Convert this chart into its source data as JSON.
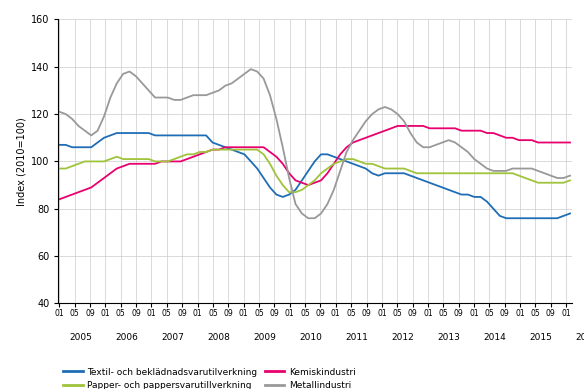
{
  "title": "",
  "ylabel": "Index (2010=100)",
  "ylim": [
    40,
    160
  ],
  "yticks": [
    40,
    60,
    80,
    100,
    120,
    140,
    160
  ],
  "background_color": "#ffffff",
  "grid_color": "#cccccc",
  "line_width": 1.3,
  "series": {
    "textil": {
      "label": "Textil- och beklädnadsvarutilverkning",
      "color": "#1f6eb5",
      "values": [
        107,
        107,
        106,
        106,
        106,
        106,
        108,
        110,
        111,
        112,
        112,
        112,
        112,
        112,
        112,
        111,
        111,
        111,
        111,
        111,
        111,
        111,
        111,
        111,
        108,
        107,
        106,
        105,
        104,
        103,
        100,
        97,
        93,
        89,
        86,
        85,
        86,
        88,
        92,
        96,
        100,
        103,
        103,
        102,
        101,
        100,
        99,
        98,
        97,
        95,
        94,
        95,
        95,
        95,
        95,
        94,
        93,
        92,
        91,
        90,
        89,
        88,
        87,
        86,
        86,
        85,
        85,
        83,
        80,
        77,
        76,
        76,
        76,
        76,
        76,
        76,
        76,
        76,
        76,
        77,
        78
      ]
    },
    "papper": {
      "label": "Papper- och pappersvarutillverkning",
      "color": "#9fc43b",
      "values": [
        97,
        97,
        98,
        99,
        100,
        100,
        100,
        100,
        101,
        102,
        101,
        101,
        101,
        101,
        101,
        100,
        100,
        100,
        101,
        102,
        103,
        103,
        104,
        104,
        105,
        105,
        105,
        105,
        105,
        105,
        105,
        105,
        103,
        99,
        94,
        90,
        87,
        87,
        88,
        90,
        92,
        95,
        97,
        99,
        100,
        101,
        101,
        100,
        99,
        99,
        98,
        97,
        97,
        97,
        97,
        96,
        95,
        95,
        95,
        95,
        95,
        95,
        95,
        95,
        95,
        95,
        95,
        95,
        95,
        95,
        95,
        95,
        94,
        93,
        92,
        91,
        91,
        91,
        91,
        91,
        92
      ]
    },
    "kemisk": {
      "label": "Kemiskindustri",
      "color": "#e8006e",
      "values": [
        84,
        85,
        86,
        87,
        88,
        89,
        91,
        93,
        95,
        97,
        98,
        99,
        99,
        99,
        99,
        99,
        100,
        100,
        100,
        100,
        101,
        102,
        103,
        104,
        105,
        105,
        106,
        106,
        106,
        106,
        106,
        106,
        106,
        104,
        102,
        99,
        95,
        92,
        91,
        90,
        91,
        92,
        95,
        99,
        103,
        106,
        108,
        109,
        110,
        111,
        112,
        113,
        114,
        115,
        115,
        115,
        115,
        115,
        114,
        114,
        114,
        114,
        114,
        113,
        113,
        113,
        113,
        112,
        112,
        111,
        110,
        110,
        109,
        109,
        109,
        108,
        108,
        108,
        108,
        108,
        108
      ]
    },
    "metall": {
      "label": "Metallindustri",
      "color": "#999999",
      "values": [
        121,
        120,
        118,
        115,
        113,
        111,
        113,
        119,
        127,
        133,
        137,
        138,
        136,
        133,
        130,
        127,
        127,
        127,
        126,
        126,
        127,
        128,
        128,
        128,
        129,
        130,
        132,
        133,
        135,
        137,
        139,
        138,
        135,
        128,
        118,
        106,
        93,
        82,
        78,
        76,
        76,
        78,
        82,
        88,
        96,
        104,
        109,
        113,
        117,
        120,
        122,
        123,
        122,
        120,
        117,
        112,
        108,
        106,
        106,
        107,
        108,
        109,
        108,
        106,
        104,
        101,
        99,
        97,
        96,
        96,
        96,
        97,
        97,
        97,
        97,
        96,
        95,
        94,
        93,
        93,
        94
      ]
    }
  },
  "legend_labels_col1": [
    "Textil- och beklädnadsvarutilverkning",
    "Kemiskindustri"
  ],
  "legend_labels_col2": [
    "Papper- och pappersvarutillverkning",
    "Metallindustri"
  ],
  "legend_colors_col1": [
    "#1f6eb5",
    "#e8006e"
  ],
  "legend_colors_col2": [
    "#9fc43b",
    "#999999"
  ]
}
